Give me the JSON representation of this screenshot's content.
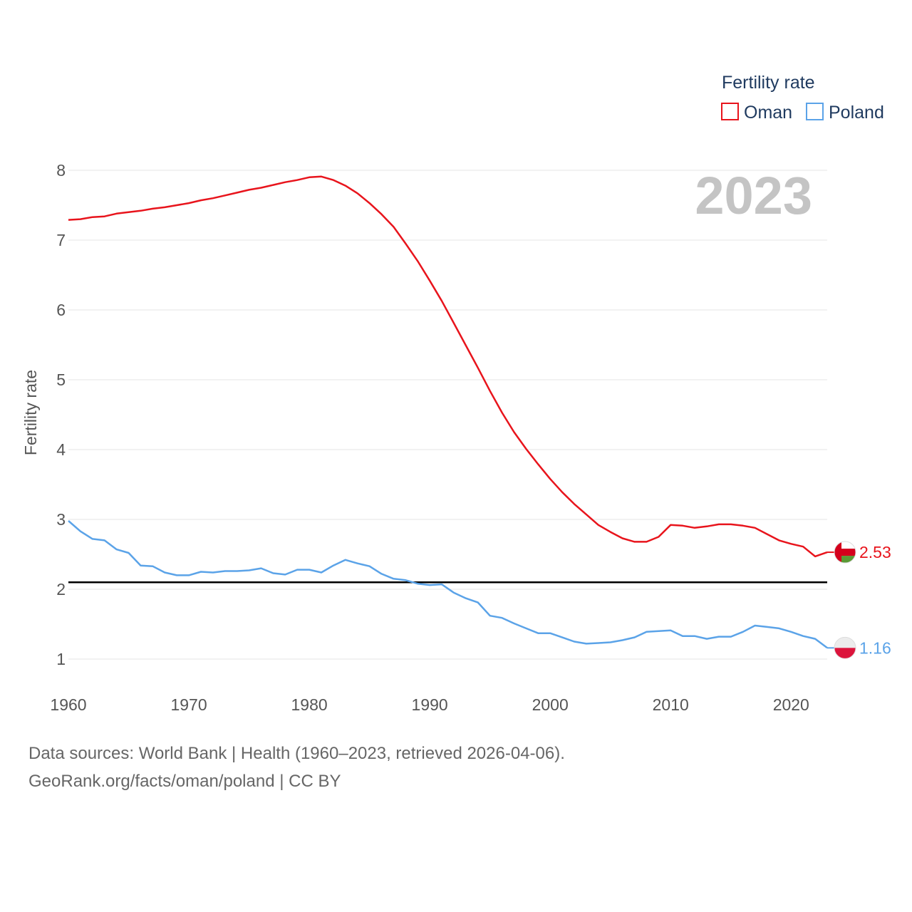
{
  "chart_data": {
    "type": "line",
    "ylabel": "Fertility rate",
    "xlabel": "",
    "year_label": "2023",
    "legend": {
      "title": "Fertility rate",
      "placement": "top-right"
    },
    "xlim": [
      1960,
      2023
    ],
    "ylim": [
      0.5,
      8.3
    ],
    "x_ticks": [
      1960,
      1970,
      1980,
      1990,
      2000,
      2010,
      2020
    ],
    "y_ticks": [
      1,
      2,
      3,
      4,
      5,
      6,
      7,
      8
    ],
    "reference_line": {
      "y": 2.1,
      "color": "#000000"
    },
    "x": [
      1960,
      1961,
      1962,
      1963,
      1964,
      1965,
      1966,
      1967,
      1968,
      1969,
      1970,
      1971,
      1972,
      1973,
      1974,
      1975,
      1976,
      1977,
      1978,
      1979,
      1980,
      1981,
      1982,
      1983,
      1984,
      1985,
      1986,
      1987,
      1988,
      1989,
      1990,
      1991,
      1992,
      1993,
      1994,
      1995,
      1996,
      1997,
      1998,
      1999,
      2000,
      2001,
      2002,
      2003,
      2004,
      2005,
      2006,
      2007,
      2008,
      2009,
      2010,
      2011,
      2012,
      2013,
      2014,
      2015,
      2016,
      2017,
      2018,
      2019,
      2020,
      2021,
      2022,
      2023
    ],
    "series": [
      {
        "name": "Oman",
        "color": "#e8141c",
        "end_value_label": "2.53",
        "values": [
          7.29,
          7.3,
          7.33,
          7.34,
          7.38,
          7.4,
          7.42,
          7.45,
          7.47,
          7.5,
          7.53,
          7.57,
          7.6,
          7.64,
          7.68,
          7.72,
          7.75,
          7.79,
          7.83,
          7.86,
          7.9,
          7.91,
          7.86,
          7.78,
          7.67,
          7.53,
          7.37,
          7.19,
          6.95,
          6.7,
          6.42,
          6.13,
          5.81,
          5.49,
          5.17,
          4.84,
          4.53,
          4.25,
          4.01,
          3.79,
          3.58,
          3.39,
          3.22,
          3.07,
          2.92,
          2.82,
          2.73,
          2.68,
          2.68,
          2.75,
          2.92,
          2.91,
          2.88,
          2.9,
          2.93,
          2.93,
          2.91,
          2.88,
          2.79,
          2.7,
          2.65,
          2.61,
          2.47,
          2.53
        ]
      },
      {
        "name": "Poland",
        "color": "#5ba3e8",
        "end_value_label": "1.16",
        "values": [
          2.98,
          2.83,
          2.72,
          2.7,
          2.57,
          2.52,
          2.34,
          2.33,
          2.24,
          2.2,
          2.2,
          2.25,
          2.24,
          2.26,
          2.26,
          2.27,
          2.3,
          2.23,
          2.21,
          2.28,
          2.28,
          2.24,
          2.34,
          2.42,
          2.37,
          2.33,
          2.22,
          2.15,
          2.13,
          2.08,
          2.06,
          2.07,
          1.95,
          1.87,
          1.81,
          1.62,
          1.59,
          1.51,
          1.44,
          1.37,
          1.37,
          1.31,
          1.25,
          1.22,
          1.23,
          1.24,
          1.27,
          1.31,
          1.39,
          1.4,
          1.41,
          1.33,
          1.33,
          1.29,
          1.32,
          1.32,
          1.39,
          1.48,
          1.46,
          1.44,
          1.39,
          1.33,
          1.29,
          1.16
        ]
      }
    ]
  },
  "footer": {
    "line1": "Data sources: World Bank | Health (1960–2023, retrieved 2026-04-06).",
    "line2": "GeoRank.org/facts/oman/poland | CC BY"
  }
}
